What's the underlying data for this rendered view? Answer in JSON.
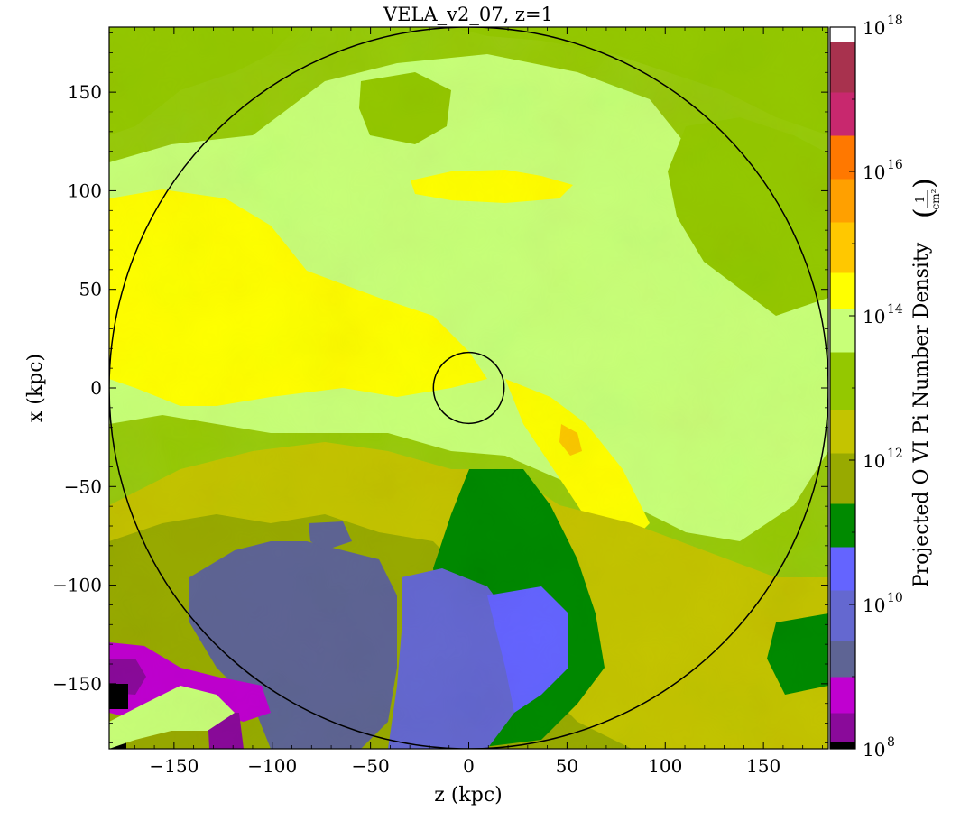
{
  "chart_data": {
    "type": "heatmap",
    "title": "VELA_v2_07, z=1",
    "xlabel": "z  (kpc)",
    "ylabel": "x  (kpc)",
    "xlim": [
      -183,
      183
    ],
    "ylim": [
      -183,
      183
    ],
    "xticks": [
      -150,
      -100,
      -50,
      0,
      50,
      100,
      150
    ],
    "yticks": [
      -150,
      -100,
      -50,
      0,
      50,
      100,
      150
    ],
    "xtick_labels": [
      "−150",
      "−100",
      "−50",
      "0",
      "50",
      "100",
      "150"
    ],
    "ytick_labels": [
      "−150",
      "−100",
      "−50",
      "0",
      "50",
      "100",
      "150"
    ],
    "colorbar": {
      "label": "Projected O VI Pi Number Density",
      "unit_num": "1",
      "unit_den": "cm²",
      "scale": "log",
      "range": [
        8,
        18
      ],
      "tick_exponents": [
        8,
        10,
        12,
        14,
        16,
        18
      ],
      "tick_labels": [
        "10",
        "10",
        "10",
        "10",
        "10",
        "10"
      ],
      "tick_superscripts": [
        "8",
        "10",
        "12",
        "14",
        "16",
        "18"
      ],
      "bands": [
        {
          "from": 8.0,
          "to": 8.1,
          "color": "#000000"
        },
        {
          "from": 8.1,
          "to": 8.5,
          "color": "#8a0a9a"
        },
        {
          "from": 8.5,
          "to": 9.0,
          "color": "#c000d0"
        },
        {
          "from": 9.0,
          "to": 9.5,
          "color": "#5e6494"
        },
        {
          "from": 9.5,
          "to": 10.2,
          "color": "#6468d0"
        },
        {
          "from": 10.2,
          "to": 10.8,
          "color": "#6464ff"
        },
        {
          "from": 10.8,
          "to": 11.4,
          "color": "#008a00"
        },
        {
          "from": 11.4,
          "to": 12.1,
          "color": "#98aa00"
        },
        {
          "from": 12.1,
          "to": 12.7,
          "color": "#c4c400"
        },
        {
          "from": 12.7,
          "to": 13.5,
          "color": "#94c800"
        },
        {
          "from": 13.5,
          "to": 14.1,
          "color": "#c8ff78"
        },
        {
          "from": 14.1,
          "to": 14.6,
          "color": "#ffff00"
        },
        {
          "from": 14.6,
          "to": 15.3,
          "color": "#ffc800"
        },
        {
          "from": 15.3,
          "to": 15.9,
          "color": "#ffa000"
        },
        {
          "from": 15.9,
          "to": 16.5,
          "color": "#ff7800"
        },
        {
          "from": 16.5,
          "to": 17.1,
          "color": "#c8286e"
        },
        {
          "from": 17.1,
          "to": 17.8,
          "color": "#a8324e"
        },
        {
          "from": 17.8,
          "to": 18.0,
          "color": "#ffffff"
        }
      ]
    },
    "circles": [
      {
        "center": [
          0,
          0
        ],
        "radius": 183
      },
      {
        "center": [
          0,
          0
        ],
        "radius": 18
      }
    ]
  }
}
